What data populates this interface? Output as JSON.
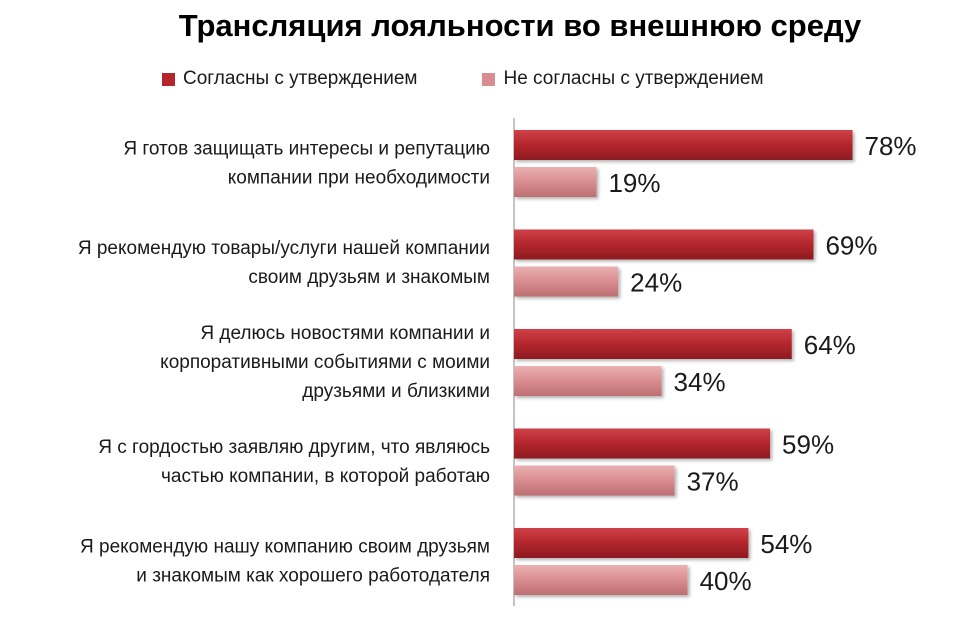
{
  "chart_data": {
    "type": "bar",
    "orientation": "horizontal",
    "title": "Трансляция лояльности во внешнюю среду",
    "legend": {
      "placement": "top"
    },
    "categories": [
      [
        "Я готов защищать интересы и репутацию",
        "компании при необходимости"
      ],
      [
        "Я рекомендую товары/услуги нашей компании",
        "своим друзьям и знакомым"
      ],
      [
        "Я делюсь новостями компании и",
        "корпоративными событиями  с моими",
        "друзьями и близкими"
      ],
      [
        "Я с гордостью заявляю другим, что являюсь",
        "частью компании, в которой работаю"
      ],
      [
        "Я рекомендую нашу компанию своим друзьям",
        "и знакомым как хорошего работодателя"
      ]
    ],
    "series": [
      {
        "name": "Согласны с утверждением",
        "color": "#b3262c",
        "values": [
          78,
          69,
          64,
          59,
          54
        ]
      },
      {
        "name": "Не согласны с утверждением",
        "color": "#d98d8f",
        "values": [
          19,
          24,
          34,
          37,
          40
        ]
      }
    ],
    "value_suffix": "%",
    "xlim": [
      0,
      100
    ],
    "grid": false
  }
}
